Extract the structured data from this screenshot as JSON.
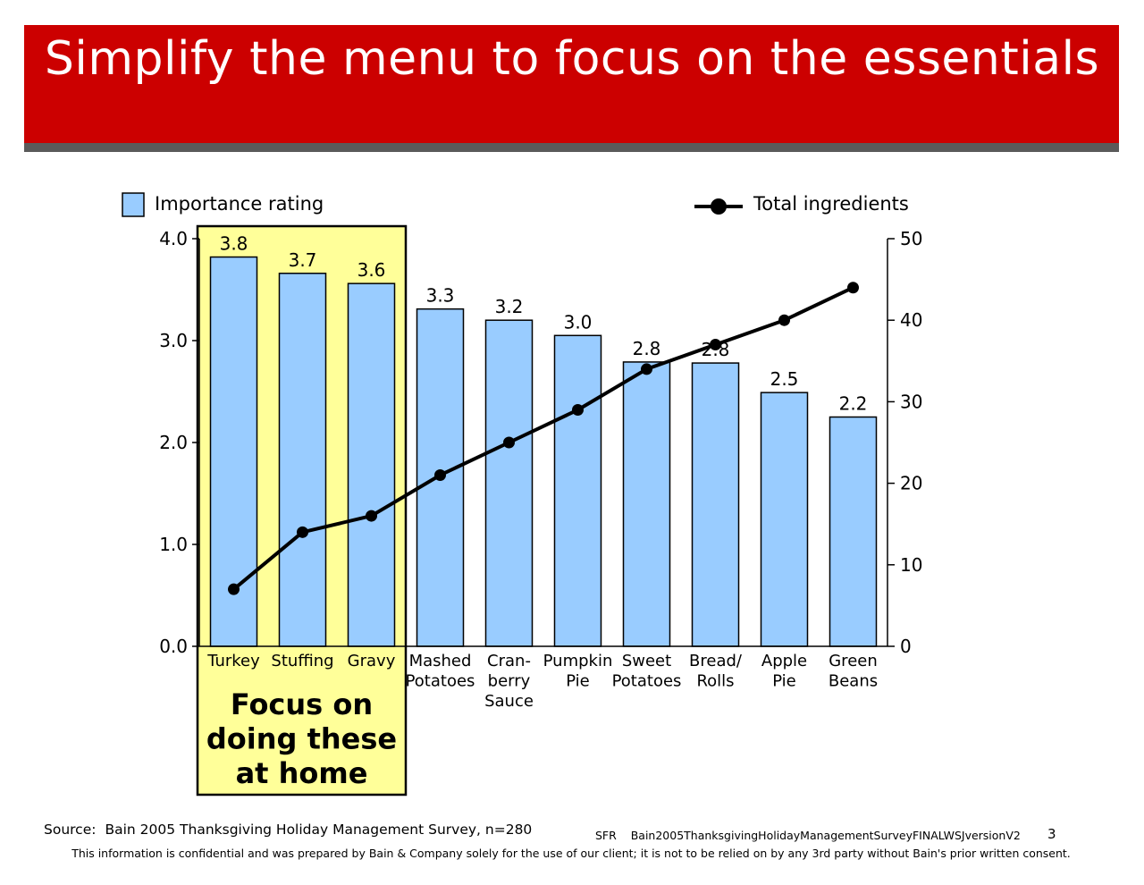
{
  "header": {
    "title": "Simplify the menu to focus on the essentials",
    "accent_color": "#cc0000",
    "rule_color": "#5a5a5a"
  },
  "chart_data": {
    "type": "bar",
    "categories": [
      [
        "Turkey"
      ],
      [
        "Stuffing"
      ],
      [
        "Gravy"
      ],
      [
        "Mashed",
        "Potatoes"
      ],
      [
        "Cran-",
        "berry",
        "Sauce"
      ],
      [
        "Pumpkin",
        "Pie"
      ],
      [
        "Sweet",
        "Potatoes"
      ],
      [
        "Bread/",
        "Rolls"
      ],
      [
        "Apple",
        "Pie"
      ],
      [
        "Green",
        "Beans"
      ]
    ],
    "series": [
      {
        "name": "Importance rating",
        "type": "bar",
        "axis": "left",
        "color": "#99ccff",
        "values": [
          3.82,
          3.66,
          3.56,
          3.31,
          3.2,
          3.05,
          2.79,
          2.78,
          2.49,
          2.25
        ],
        "data_labels": [
          "3.8",
          "3.7",
          "3.6",
          "3.3",
          "3.2",
          "3.0",
          "2.8",
          "2.8",
          "2.5",
          "2.2"
        ]
      },
      {
        "name": "Total ingredients",
        "type": "line",
        "axis": "right",
        "color": "#000000",
        "values": [
          7,
          14,
          16,
          21,
          25,
          29,
          34,
          37,
          40,
          44
        ]
      }
    ],
    "left_axis": {
      "ylim": [
        0,
        4
      ],
      "ticks": [
        "0.0",
        "1.0",
        "2.0",
        "3.0",
        "4.0"
      ]
    },
    "right_axis": {
      "ylim": [
        0,
        50
      ],
      "ticks": [
        "0",
        "10",
        "20",
        "30",
        "40",
        "50"
      ]
    },
    "legend": {
      "placement": "top"
    },
    "grid": false,
    "highlight": {
      "categories": [
        "Turkey",
        "Stuffing",
        "Gravy"
      ],
      "color": "#ffff99",
      "caption": [
        "Focus on",
        "doing these",
        "at home"
      ]
    }
  },
  "footer": {
    "source_label": "Source:",
    "source_text": "Bain 2005 Thanksgiving Holiday Management Survey, n=280",
    "doc_code": "SFR",
    "doc_name": "Bain2005ThanksgivingHolidayManagementSurveyFINALWSJversionV2",
    "page_number": "3",
    "confidential": "This information is confidential and was prepared by Bain & Company solely for the use of our client; it is not to be relied on by any 3rd party without Bain's prior written consent."
  }
}
